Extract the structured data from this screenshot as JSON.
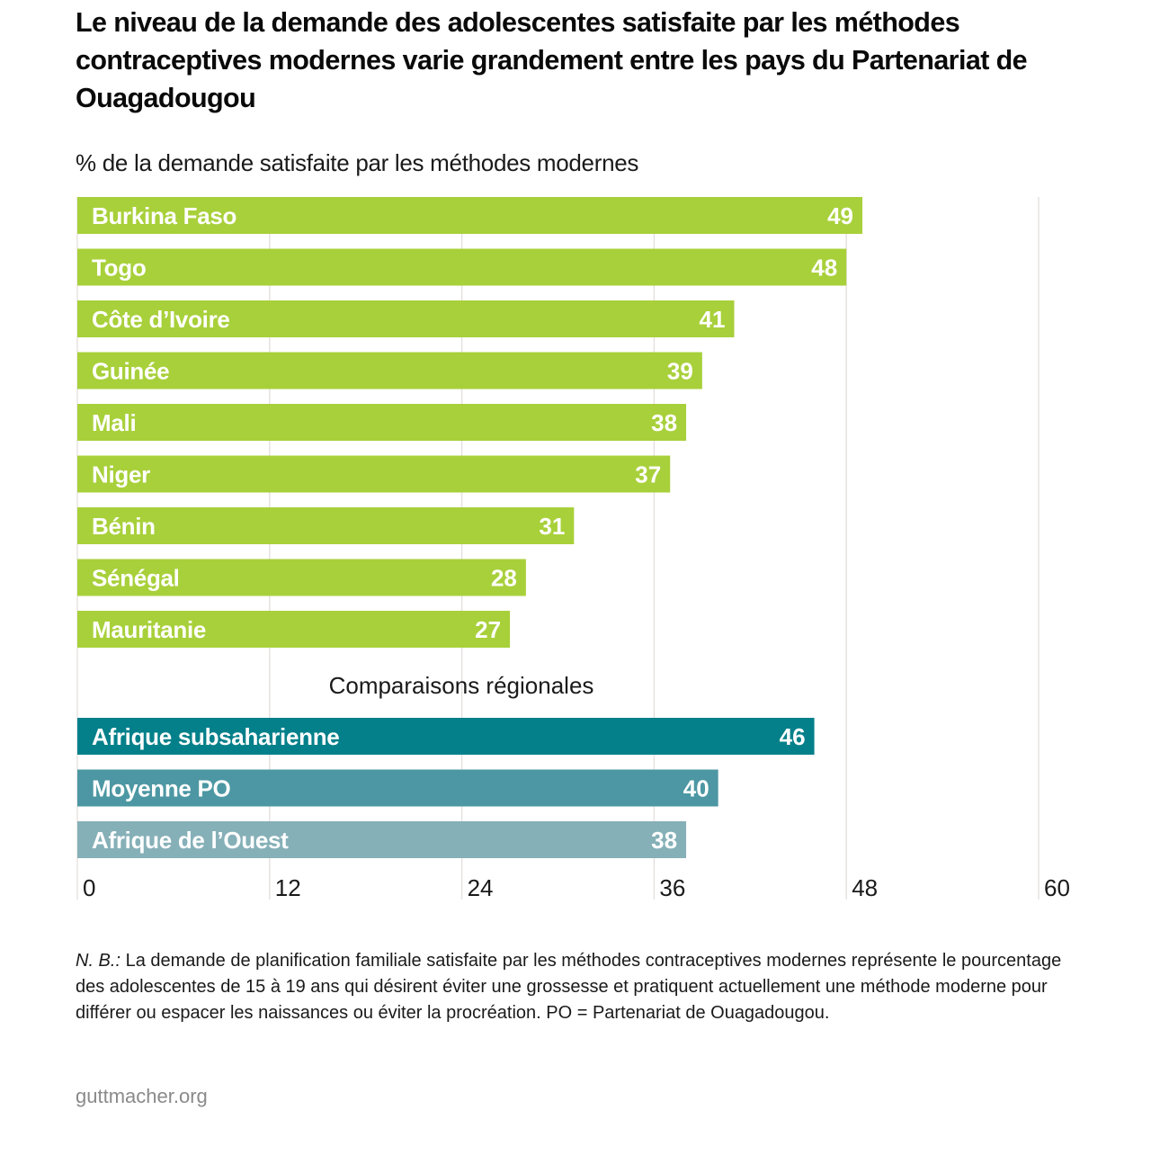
{
  "title": "Le niveau de la demande des adolescentes satisfaite par les méthodes contraceptives modernes varie grandement entre les pays du Partenariat de Ouagadougou",
  "subtitle": "% de la demande satisfaite par les méthodes modernes",
  "note_label": "N. B.:",
  "note_text": " La demande de planification familiale satisfaite par les méthodes contraceptives modernes représente le pourcentage des adolescentes de 15 à 19 ans qui désirent éviter une grossesse et pratiquent actuellement une méthode moderne pour différer ou espacer les naissances ou éviter la procréation. PO = Partenariat de Ouagadougou.",
  "source": "guttmacher.org",
  "colors": {
    "country": "#a8d03a",
    "afrique_subsaharienne": "#04808a",
    "moyenne_po": "#4c97a3",
    "afrique_ouest": "#86b0b8",
    "grid": "#e4dedb"
  },
  "chart_data": {
    "type": "bar",
    "orientation": "horizontal",
    "title": "Le niveau de la demande des adolescentes satisfaite par les méthodes contraceptives modernes varie grandement entre les pays du Partenariat de Ouagadougou",
    "subtitle": "% de la demande satisfaite par les méthodes modernes",
    "xlabel": "",
    "ylabel": "",
    "xlim": [
      0,
      60
    ],
    "xticks": [
      0,
      12,
      24,
      36,
      48,
      60
    ],
    "grid": true,
    "legend": "none",
    "series": [
      {
        "name": "Pays",
        "color_key": "country",
        "categories": [
          "Burkina Faso",
          "Togo",
          "Côte d’Ivoire",
          "Guinée",
          "Mali",
          "Niger",
          "Bénin",
          "Sénégal",
          "Mauritanie"
        ],
        "values": [
          49,
          48,
          41,
          39,
          38,
          37,
          31,
          28,
          27
        ]
      },
      {
        "name": "Comparaisons régionales",
        "categories": [
          "Afrique subsaharienne",
          "Moyenne PO",
          "Afrique de l’Ouest"
        ],
        "values": [
          46,
          40,
          38
        ],
        "color_keys": [
          "afrique_subsaharienne",
          "moyenne_po",
          "afrique_ouest"
        ]
      }
    ],
    "section_label": "Comparaisons régionales"
  }
}
